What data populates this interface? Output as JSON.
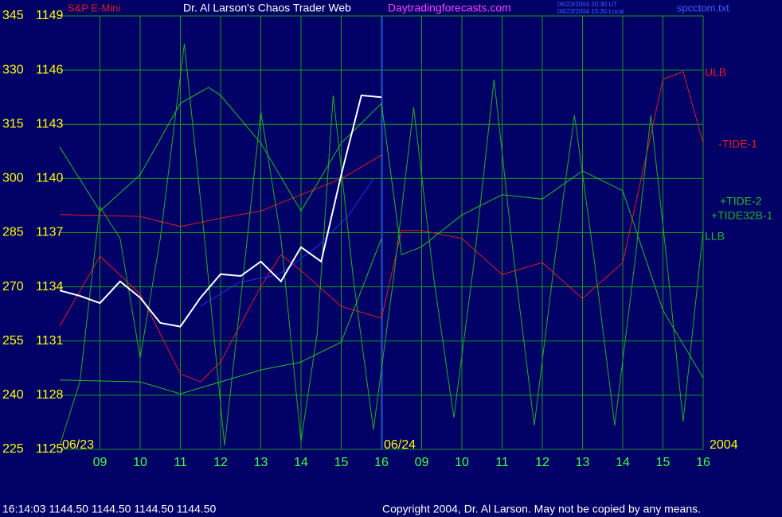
{
  "header": {
    "symbol": "S&P E-Mini",
    "title": "Dr. Al Larson's Chaos Trader Web",
    "site": "Daytradingforecasts.com",
    "time_ut": "06/23/2004 20:30 UT",
    "time_local": "06/23/2004 15:30 Local",
    "file": "spcctom.txt"
  },
  "footer": {
    "quote": "16:14:03  1144.50 1144.50 1144.50 1144.50",
    "copyright": "Copyright 2004, Dr. Al Larson. May not be copied by any means."
  },
  "chart_data": {
    "type": "line",
    "annotations": [
      "06/23",
      "06/24",
      "2004"
    ],
    "xlim": [
      8,
      24
    ],
    "xticks": [
      {
        "value": 9,
        "label": "09"
      },
      10,
      11,
      12,
      13,
      14,
      15,
      16,
      {
        "value": 17,
        "label": "09"
      },
      {
        "value": 18,
        "label": "10"
      },
      {
        "value": 19,
        "label": "11"
      },
      {
        "value": 20,
        "label": "12"
      },
      {
        "value": 21,
        "label": "13"
      },
      {
        "value": 22,
        "label": "14"
      },
      {
        "value": 23,
        "label": "15"
      },
      {
        "value": 24,
        "label": "16"
      }
    ],
    "ylim": [
      225,
      345
    ],
    "yticks": [
      225,
      240,
      255,
      270,
      285,
      300,
      315,
      330,
      345
    ],
    "y2lim": [
      1125,
      1149
    ],
    "y2ticks": [
      1125,
      1128,
      1131,
      1134,
      1137,
      1140,
      1143,
      1146,
      1149
    ],
    "grid": true,
    "series": [
      {
        "name": "ULB",
        "color": "#e02020",
        "x": [
          8,
          10,
          11,
          12,
          13,
          14,
          15,
          16
        ],
        "values": [
          290,
          289.5,
          286.7,
          289,
          291,
          295.5,
          299.9,
          306.5
        ]
      },
      {
        "name": "-TIDE-1",
        "color": "#e02020",
        "x": [
          8,
          9,
          10,
          11,
          11.5,
          12,
          13,
          13.5,
          14,
          15,
          16,
          16.5,
          17,
          18,
          19,
          20,
          21,
          22,
          23,
          23.5,
          24
        ],
        "values": [
          259.1,
          278.5,
          268,
          245.9,
          243.7,
          249.2,
          270.1,
          278.9,
          274.5,
          264.6,
          261.3,
          285.6,
          285.6,
          283.4,
          273.4,
          276.7,
          266.8,
          276.7,
          327.4,
          329.6,
          309.8
        ]
      },
      {
        "name": "+TIDE-2",
        "color": "#20c020",
        "x": [
          8,
          9,
          10,
          11,
          11.7,
          12,
          13,
          14,
          15,
          16,
          16.5,
          17,
          18,
          19,
          20,
          21,
          22,
          23,
          24
        ],
        "values": [
          308.7,
          291,
          301,
          320.8,
          325.2,
          323,
          309.8,
          291,
          309.8,
          320.8,
          278.9,
          281.1,
          289.9,
          295.5,
          294.3,
          302.1,
          296.6,
          263.5,
          244.8
        ]
      },
      {
        "name": "+TIDE32B-1",
        "color": "#20b020",
        "x": [
          8,
          8.5,
          9,
          9.5,
          10,
          10.5,
          11.1,
          11.6,
          12.1,
          12.6,
          13,
          13.5,
          14,
          14.4,
          14.8,
          15.3,
          15.8,
          16.3,
          16.8,
          17.3,
          17.8,
          18.3,
          18.8,
          19.3,
          19.8,
          20.3,
          20.8,
          21.3,
          21.8,
          22.3,
          22.7,
          23.1,
          23.5,
          24
        ],
        "values": [
          226.1,
          243.7,
          292.2,
          283.4,
          250.3,
          283.4,
          337.3,
          283.4,
          226.1,
          276.7,
          318.6,
          283.4,
          227.2,
          256.9,
          323,
          272.3,
          230.5,
          272.3,
          319.7,
          272.3,
          233.8,
          276.7,
          327.4,
          276.7,
          231.6,
          276.7,
          317.5,
          276.7,
          231.6,
          276.7,
          317.5,
          276.7,
          232.7,
          285.6
        ]
      },
      {
        "name": "LLB",
        "color": "#20c020",
        "x": [
          8,
          10,
          11,
          12,
          13,
          14,
          15,
          16
        ],
        "values": [
          244.2,
          243.7,
          240.4,
          243.7,
          247,
          249.2,
          254.7,
          283.4
        ]
      },
      {
        "color": "#2030ff",
        "x": [
          11.5,
          12.45,
          13.45,
          14.4,
          15.2,
          15.8
        ],
        "values": [
          264.6,
          271.2,
          273.4,
          281.1,
          290,
          299.9
        ]
      },
      {
        "color": "#ffffff",
        "axis": "y2",
        "x": [
          8,
          8.5,
          9,
          9.5,
          10,
          10.5,
          11,
          11.5,
          12,
          12.5,
          13,
          13.5,
          14,
          14.5,
          15,
          15.5,
          16
        ],
        "values": [
          1133.8,
          1133.5,
          1133.1,
          1134.3,
          1133.4,
          1132,
          1131.8,
          1133.4,
          1134.7,
          1134.6,
          1135.4,
          1134.3,
          1136.2,
          1135.4,
          1140.2,
          1144.6,
          1144.5
        ]
      }
    ]
  }
}
